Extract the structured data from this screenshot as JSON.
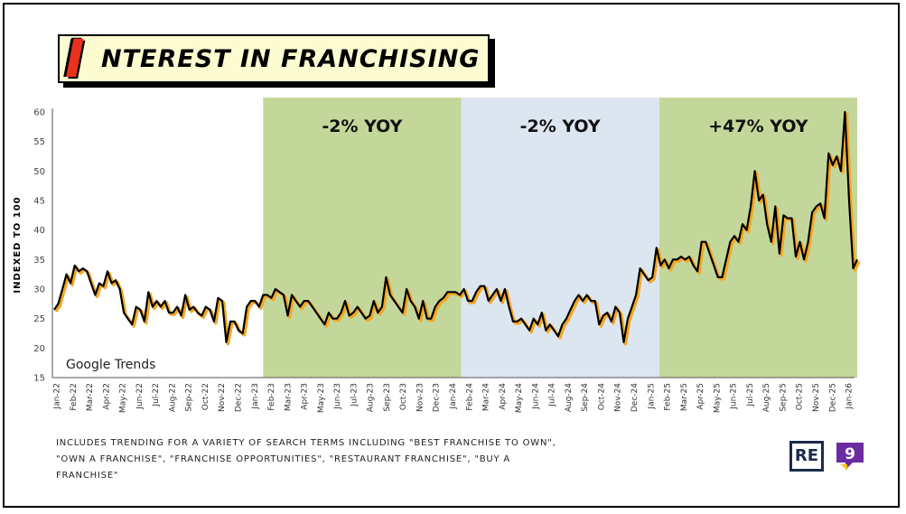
{
  "title": {
    "initial": "I",
    "rest": "NTEREST IN FRANCHISING"
  },
  "footnote": "Includes trending for a variety of search terms including \"best franchise to own\", \"own a franchise\", \"franchise opportunities\", \"restaurant franchise\", \"buy a franchise\"",
  "watermark": "Google Trends",
  "logos": {
    "re_text": "RE",
    "nine_text": "9"
  },
  "colors": {
    "line_main": "#000000",
    "line_shadow": "#f5a623",
    "band_green": "#c4d79b",
    "band_blue": "#dce6f1",
    "title_bg": "#fdfbd0",
    "title_initial": "#e8321c",
    "logo_purple": "#6a2ca0",
    "logo_yellow": "#f5c518"
  },
  "chart_data": {
    "type": "line",
    "title": "Interest in Franchising",
    "xlabel": "",
    "ylabel": "INDEXED TO 100",
    "ylim": [
      15,
      60
    ],
    "yticks": [
      15,
      20,
      25,
      30,
      35,
      40,
      45,
      50,
      55,
      60
    ],
    "grid": false,
    "legend": "none",
    "x_start": "2022-01",
    "x_period": "weekly",
    "month_labels": [
      "Jan-22",
      "Feb-22",
      "Mar-22",
      "Apr-22",
      "May-22",
      "Jun-22",
      "Jul-22",
      "Aug-22",
      "Sep-22",
      "Oct-22",
      "Nov-22",
      "Dec-22",
      "Jan-23",
      "Feb-23",
      "Mar-23",
      "Apr-23",
      "May-23",
      "Jun-23",
      "Jul-23",
      "Aug-23",
      "Sep-23",
      "Oct-23",
      "Nov-23",
      "Dec-23",
      "Jan-24",
      "Feb-24",
      "Mar-24",
      "Apr-24",
      "May-24",
      "Jun-24",
      "Jul-24",
      "Aug-24",
      "Sep-24",
      "Oct-24",
      "Nov-24",
      "Dec-24",
      "Jan-25",
      "Feb-25",
      "Mar-25",
      "Apr-25",
      "May-25",
      "Jun-25",
      "Jul-25",
      "Aug-25",
      "Sep-25",
      "Oct-25",
      "Nov-25",
      "Dec-25",
      "Jan-26"
    ],
    "bands": [
      {
        "from": "Jan-23",
        "to": "Jan-24",
        "label": "-2% YOY",
        "color": "#c4d79b"
      },
      {
        "from": "Jan-24",
        "to": "Jan-25",
        "label": "-2% YOY",
        "color": "#dce6f1"
      },
      {
        "from": "Jan-25",
        "to": "Jan-26",
        "label": "+47% YOY",
        "color": "#c4d79b"
      }
    ],
    "series": [
      {
        "name": "",
        "values": [
          26.5,
          27.5,
          30,
          32.5,
          31,
          34,
          33,
          33.5,
          33,
          31,
          29,
          31,
          30.5,
          33,
          31,
          31.5,
          30,
          26,
          25,
          24,
          27,
          26.5,
          24.5,
          29.5,
          27,
          28,
          27,
          28,
          26,
          26,
          27,
          25.5,
          29,
          26.5,
          27,
          26,
          25.5,
          27,
          26.5,
          24.5,
          28.5,
          28,
          21,
          24.5,
          24.5,
          23,
          22.5,
          27,
          28,
          28,
          27,
          29,
          29,
          28.5,
          30,
          29.5,
          29,
          25.5,
          29,
          28,
          27,
          28,
          28,
          27,
          26,
          25,
          24,
          26,
          25,
          25,
          26,
          28,
          25.5,
          26,
          27,
          26,
          25,
          25.5,
          28,
          26,
          27,
          32,
          29,
          28,
          27,
          26,
          30,
          28,
          27,
          25,
          28,
          25,
          25,
          27,
          28,
          28.5,
          29.5,
          29.5,
          29.5,
          29,
          30,
          28,
          28,
          29.5,
          30.5,
          30.5,
          28,
          29,
          30,
          28,
          30,
          27,
          24.5,
          24.5,
          25,
          24,
          23,
          25,
          24,
          26,
          23,
          24,
          23,
          22,
          24,
          25,
          26.5,
          28,
          29,
          28,
          29,
          28,
          28,
          24,
          25.5,
          26,
          24.5,
          27,
          26,
          21,
          25,
          27,
          29,
          33.5,
          32.5,
          31.5,
          32,
          37,
          34,
          35,
          33.5,
          35,
          35,
          35.5,
          35,
          35.5,
          34,
          33,
          38,
          38,
          36,
          34,
          32,
          32,
          35,
          38,
          39,
          38,
          41,
          40,
          44,
          50,
          45,
          46,
          41,
          38,
          44,
          36,
          42.5,
          42,
          42,
          35.5,
          38,
          35,
          38,
          43,
          44,
          44.5,
          42,
          53,
          51,
          52.5,
          50,
          60,
          45,
          33.5,
          35
        ]
      }
    ]
  }
}
